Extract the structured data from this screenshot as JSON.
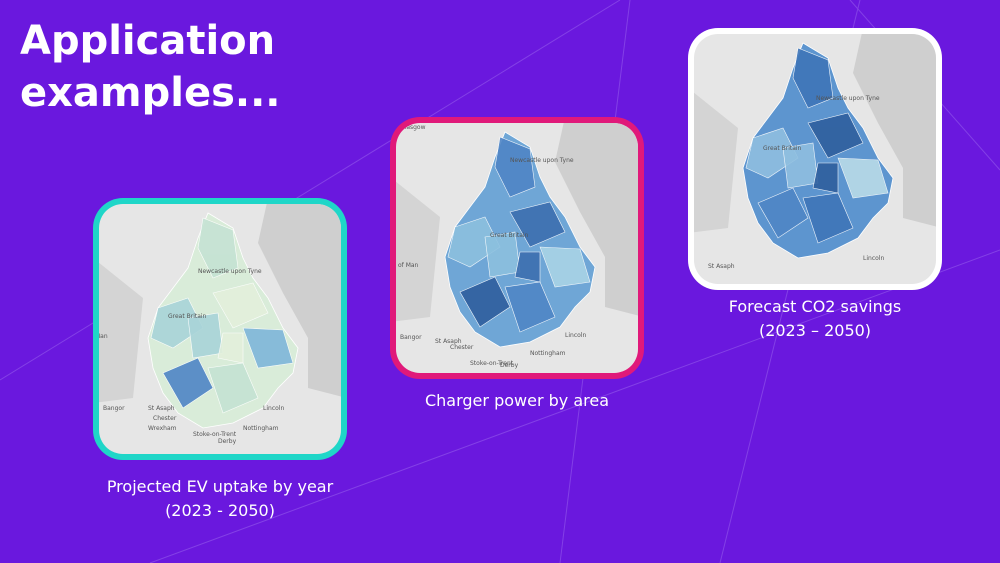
{
  "title": [
    "Application",
    "examples..."
  ],
  "cards": [
    {
      "caption": [
        "Projected EV uptake by year",
        "(2023 - 2050)"
      ],
      "map_labels": [
        "Newcastle upon Tyne",
        "Great Britain",
        "Man",
        "Bangor",
        "St Asaph",
        "Chester",
        "Wrexham",
        "Stoke-on-Trent",
        "Derby",
        "Nottingham",
        "Lincoln"
      ]
    },
    {
      "caption": [
        "Charger power by area"
      ],
      "map_labels": [
        "Glasgow",
        "of Man",
        "Newcastle upon Tyne",
        "Great Britain",
        "Bangor",
        "St Asaph",
        "Chester",
        "Stoke-on-Trent",
        "Derby",
        "Nottingham",
        "Lincoln"
      ]
    },
    {
      "caption": [
        "Forecast CO2 savings",
        "(2023 – 2050)"
      ],
      "map_labels": [
        "Newcastle upon Tyne",
        "Great Britain",
        "St Asaph",
        "Lincoln"
      ]
    }
  ]
}
